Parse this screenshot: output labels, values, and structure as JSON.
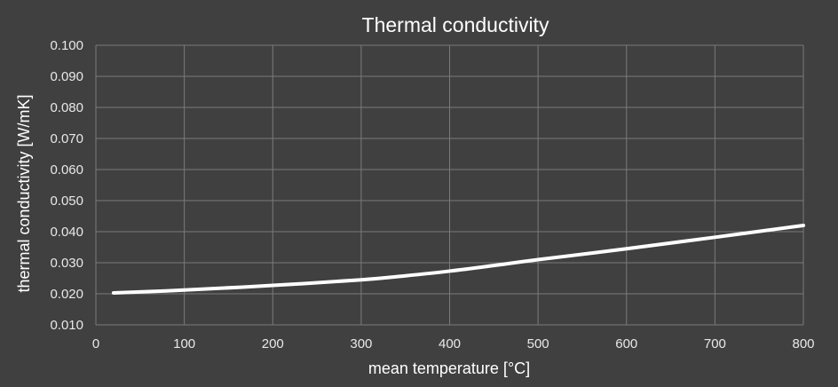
{
  "chart_data": {
    "type": "line",
    "title": "Thermal conductivity",
    "xlabel": "mean temperature  [°C]",
    "ylabel": "thermal conductivity  [W/mK]",
    "xlim": [
      0,
      800
    ],
    "ylim": [
      0.01,
      0.1
    ],
    "x_ticks": [
      "0",
      "100",
      "200",
      "300",
      "400",
      "500",
      "600",
      "700",
      "800"
    ],
    "y_ticks": [
      "0.010",
      "0.020",
      "0.030",
      "0.040",
      "0.050",
      "0.060",
      "0.070",
      "0.080",
      "0.090",
      "0.100"
    ],
    "grid": true,
    "legend": "none",
    "series": [
      {
        "color": "#ffffff",
        "x": [
          20,
          100,
          200,
          300,
          350,
          400,
          450,
          500,
          600,
          700,
          800
        ],
        "y": [
          0.0203,
          0.0212,
          0.0227,
          0.0245,
          0.0258,
          0.0273,
          0.0291,
          0.031,
          0.0345,
          0.0382,
          0.042
        ]
      }
    ]
  }
}
